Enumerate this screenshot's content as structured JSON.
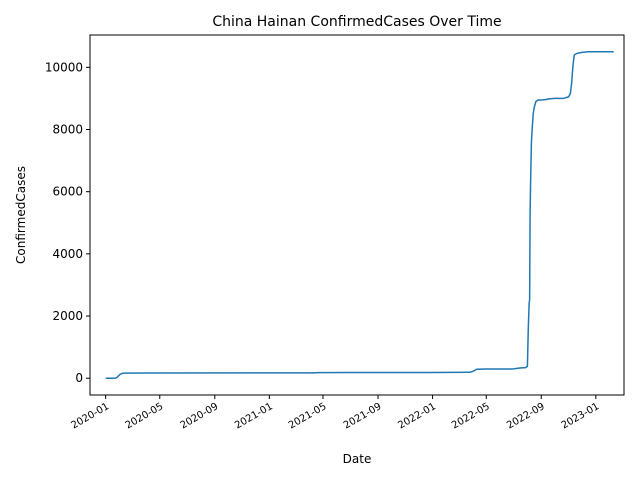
{
  "chart_data": {
    "type": "line",
    "title": "China Hainan ConfirmedCases Over Time",
    "xlabel": "Date",
    "ylabel": "ConfirmedCases",
    "xlim": [
      "2019-11-27",
      "2023-03-05"
    ],
    "ylim": [
      -540,
      11040
    ],
    "x_ticks": [
      "2020-01",
      "2020-05",
      "2020-09",
      "2021-01",
      "2021-05",
      "2021-09",
      "2022-01",
      "2022-05",
      "2022-09",
      "2023-01"
    ],
    "y_ticks": [
      0,
      2000,
      4000,
      6000,
      8000,
      10000
    ],
    "grid": false,
    "legend": "none",
    "series": [
      {
        "color": "#1f77b4",
        "x": [
          "2020-01-01",
          "2020-01-22",
          "2020-01-26",
          "2020-01-30",
          "2020-02-03",
          "2020-02-07",
          "2020-02-12",
          "2020-02-20",
          "2020-04-01",
          "2021-01-01",
          "2021-04-10",
          "2021-04-20",
          "2021-07-01",
          "2022-01-01",
          "2022-03-25",
          "2022-04-01",
          "2022-04-10",
          "2022-05-01",
          "2022-06-01",
          "2022-06-25",
          "2022-07-01",
          "2022-07-15",
          "2022-07-28",
          "2022-08-01",
          "2022-08-03",
          "2022-08-05",
          "2022-08-06",
          "2022-08-07",
          "2022-08-08",
          "2022-08-09",
          "2022-08-10",
          "2022-08-12",
          "2022-08-14",
          "2022-08-16",
          "2022-08-18",
          "2022-08-20",
          "2022-08-25",
          "2022-09-01",
          "2022-09-10",
          "2022-09-20",
          "2022-10-01",
          "2022-10-20",
          "2022-11-01",
          "2022-11-05",
          "2022-11-08",
          "2022-11-10",
          "2022-11-12",
          "2022-11-14",
          "2022-11-20",
          "2022-12-01",
          "2022-12-15",
          "2023-01-01",
          "2023-02-10"
        ],
        "y": [
          0,
          0,
          20,
          80,
          130,
          155,
          162,
          165,
          168,
          170,
          171,
          180,
          182,
          185,
          190,
          220,
          290,
          295,
          295,
          295,
          300,
          330,
          340,
          380,
          1600,
          2450,
          2500,
          5200,
          6200,
          6900,
          7600,
          8100,
          8500,
          8700,
          8800,
          8900,
          8950,
          8950,
          8960,
          8990,
          9000,
          9000,
          9050,
          9150,
          9500,
          9900,
          10200,
          10400,
          10450,
          10480,
          10500,
          10500,
          10500
        ]
      }
    ]
  }
}
